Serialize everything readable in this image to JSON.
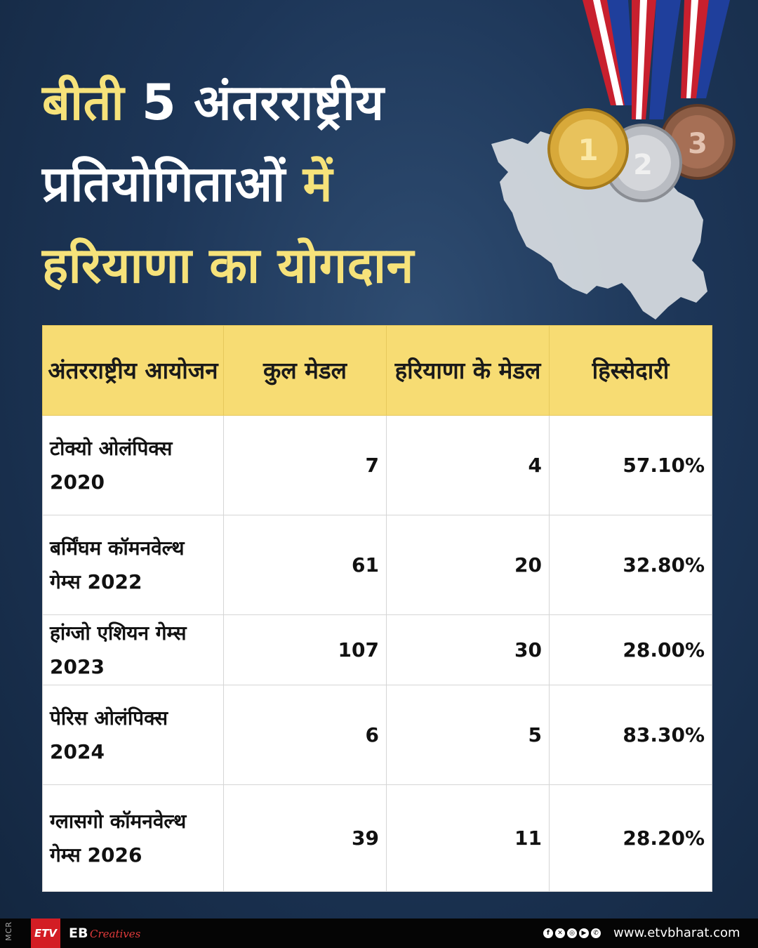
{
  "headline": {
    "line1_yellow": "बीती",
    "line1_white": "5 अंतरराष्ट्रीय",
    "line2_white": "प्रतियोगिताओं",
    "line2_yellow": "में",
    "line3_yellow": "हरियाणा का योगदान"
  },
  "table": {
    "headers": [
      "अंतरराष्ट्रीय आयोजन",
      "कुल मेडल",
      "हरियाणा के मेडल",
      "हिस्सेदारी"
    ],
    "rows": [
      {
        "event": "टोक्यो ओलंपिक्स 2020",
        "total": "7",
        "haryana": "4",
        "share": "57.10%"
      },
      {
        "event": "बर्मिंघम कॉमनवेल्थ गेम्स 2022",
        "total": "61",
        "haryana": "20",
        "share": "32.80%"
      },
      {
        "event": "हांग्जो एशियन गेम्स 2023",
        "total": "107",
        "haryana": "30",
        "share": "28.00%"
      },
      {
        "event": "पेरिस ओलंपिक्स 2024",
        "total": "6",
        "haryana": "5",
        "share": "83.30%"
      },
      {
        "event": "ग्लासगो कॉमनवेल्थ गेम्स 2026",
        "total": "39",
        "haryana": "11",
        "share": "28.20%"
      }
    ]
  },
  "medals": {
    "gold": "1",
    "silver": "2",
    "bronze": "3"
  },
  "footer": {
    "mcr": "MCR",
    "logo": "ETV",
    "eb": "EB",
    "eb_sub": "Creatives",
    "social_icons": [
      "facebook-icon",
      "x-icon",
      "instagram-icon",
      "youtube-icon",
      "whatsapp-icon"
    ],
    "website": "www.etvbharat.com"
  }
}
